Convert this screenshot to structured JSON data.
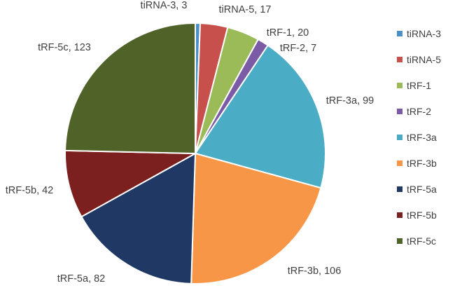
{
  "chart_data": {
    "type": "pie",
    "title": "",
    "categories": [
      "tiRNA-3",
      "tiRNA-5",
      "tRF-1",
      "tRF-2",
      "tRF-3a",
      "tRF-3b",
      "tRF-5a",
      "tRF-5b",
      "tRF-5c"
    ],
    "values": [
      3,
      17,
      20,
      7,
      99,
      106,
      82,
      42,
      123
    ],
    "colors": [
      "#4a90c8",
      "#c8504c",
      "#9bbb59",
      "#7b5aa6",
      "#4bacc6",
      "#f79646",
      "#1f3864",
      "#7b1f1f",
      "#4f6228"
    ],
    "data_labels": [
      "tiRNA-3, 3",
      "tiRNA-5, 17",
      "tRF-1, 20",
      "tRF-2, 7",
      "tRF-3a, 99",
      "tRF-3b, 106",
      "tRF-5a, 82",
      "tRF-5b, 42",
      "tRF-5c, 123"
    ],
    "legend_position": "right",
    "start_angle_deg": 0,
    "direction": "clockwise"
  }
}
